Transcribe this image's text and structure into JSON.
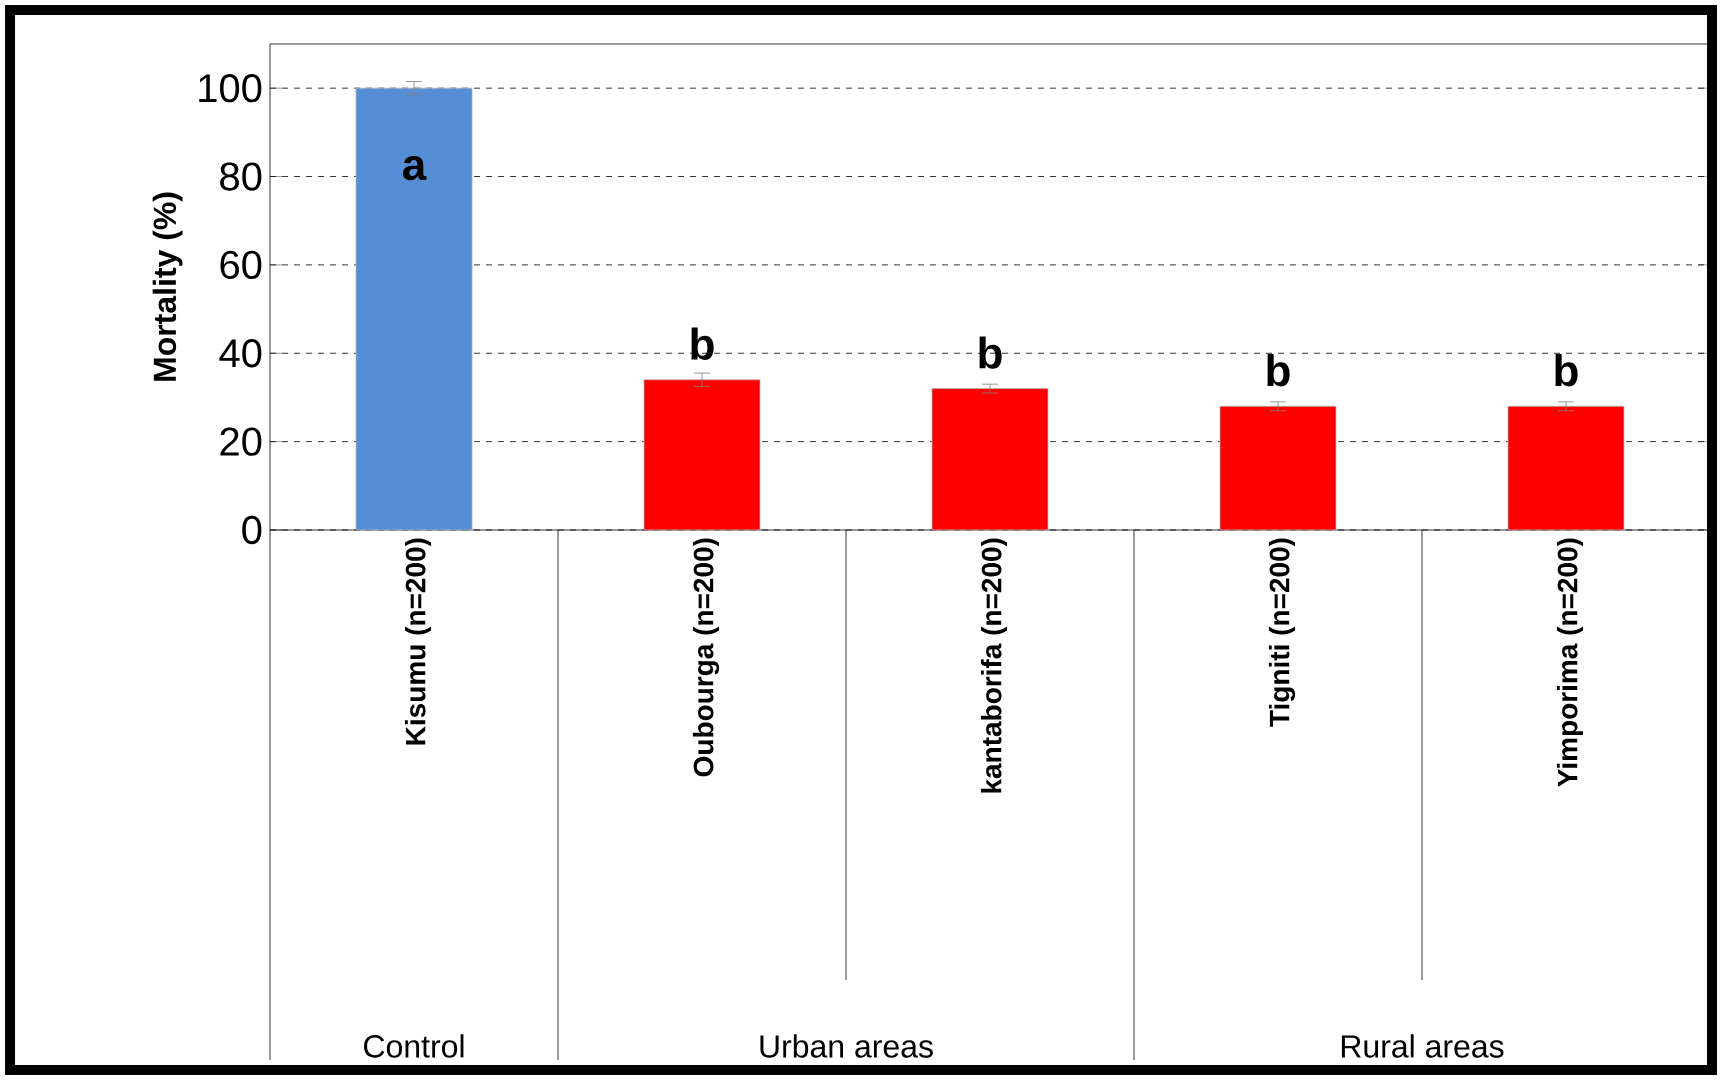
{
  "chart_data": {
    "type": "bar",
    "ylabel": "Mortality (%)",
    "categories": [
      "Kisumu (n=200)",
      "Oubourga (n=200)",
      "kantaborifa (n=200)",
      "Tigniti (n=200)",
      "Yimporima (n=200)"
    ],
    "values": [
      100,
      34,
      32,
      28,
      28
    ],
    "errors": [
      1.5,
      1.5,
      1,
      1,
      1
    ],
    "colors": [
      "#558ed5",
      "#ff0000",
      "#ff0000",
      "#ff0000",
      "#ff0000"
    ],
    "ylim": [
      0,
      110
    ],
    "yticks": [
      0,
      20,
      40,
      60,
      80,
      100
    ],
    "grid": "y",
    "annotations": [
      "a",
      "b",
      "b",
      "b",
      "b",
      "Control",
      "Urban areas",
      "Rural areas"
    ]
  }
}
